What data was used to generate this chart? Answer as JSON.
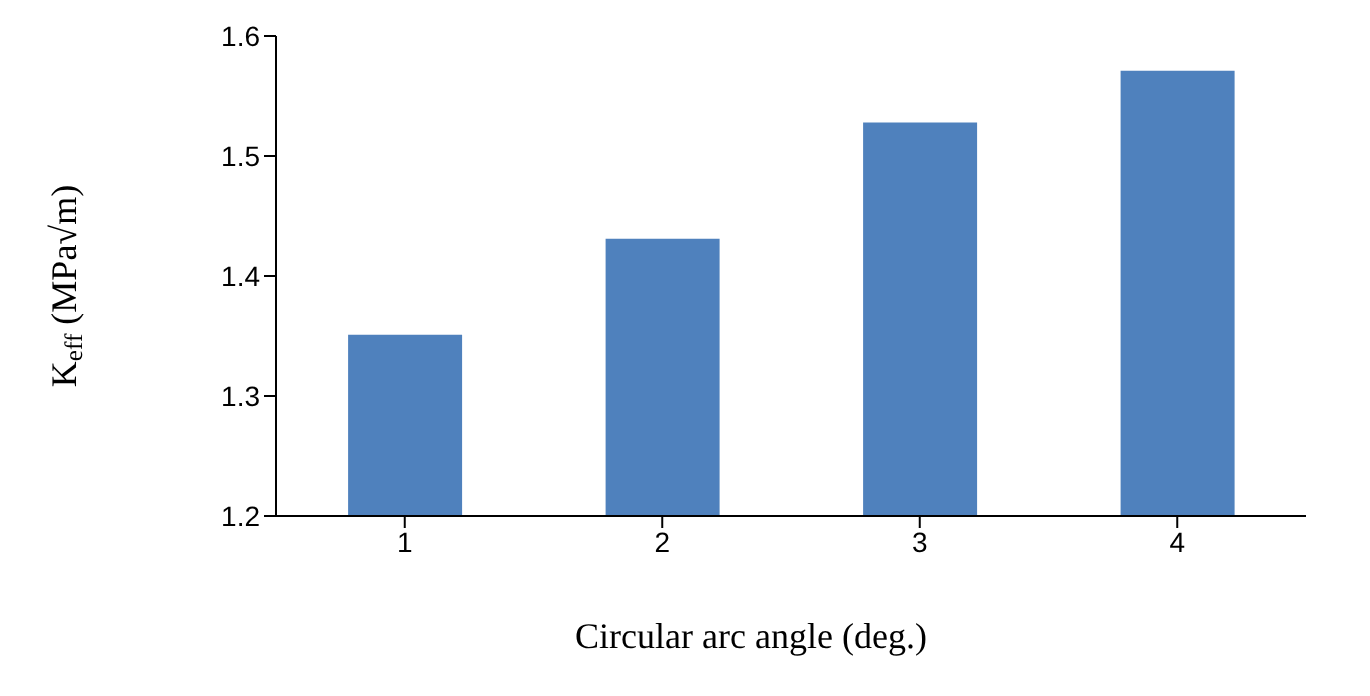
{
  "chart_data": {
    "type": "bar",
    "xlabel": "Circular arc angle (deg.)",
    "ylabel": "K$_{eff}$ (MPa√m)",
    "categories": [
      "1",
      "2",
      "3",
      "4"
    ],
    "values": [
      1.351,
      1.431,
      1.528,
      1.571
    ],
    "color": "#4f81bd",
    "ylim": [
      1.2,
      1.6
    ],
    "yticks": [
      1.2,
      1.3,
      1.4,
      1.5,
      1.6
    ],
    "grid": false
  }
}
